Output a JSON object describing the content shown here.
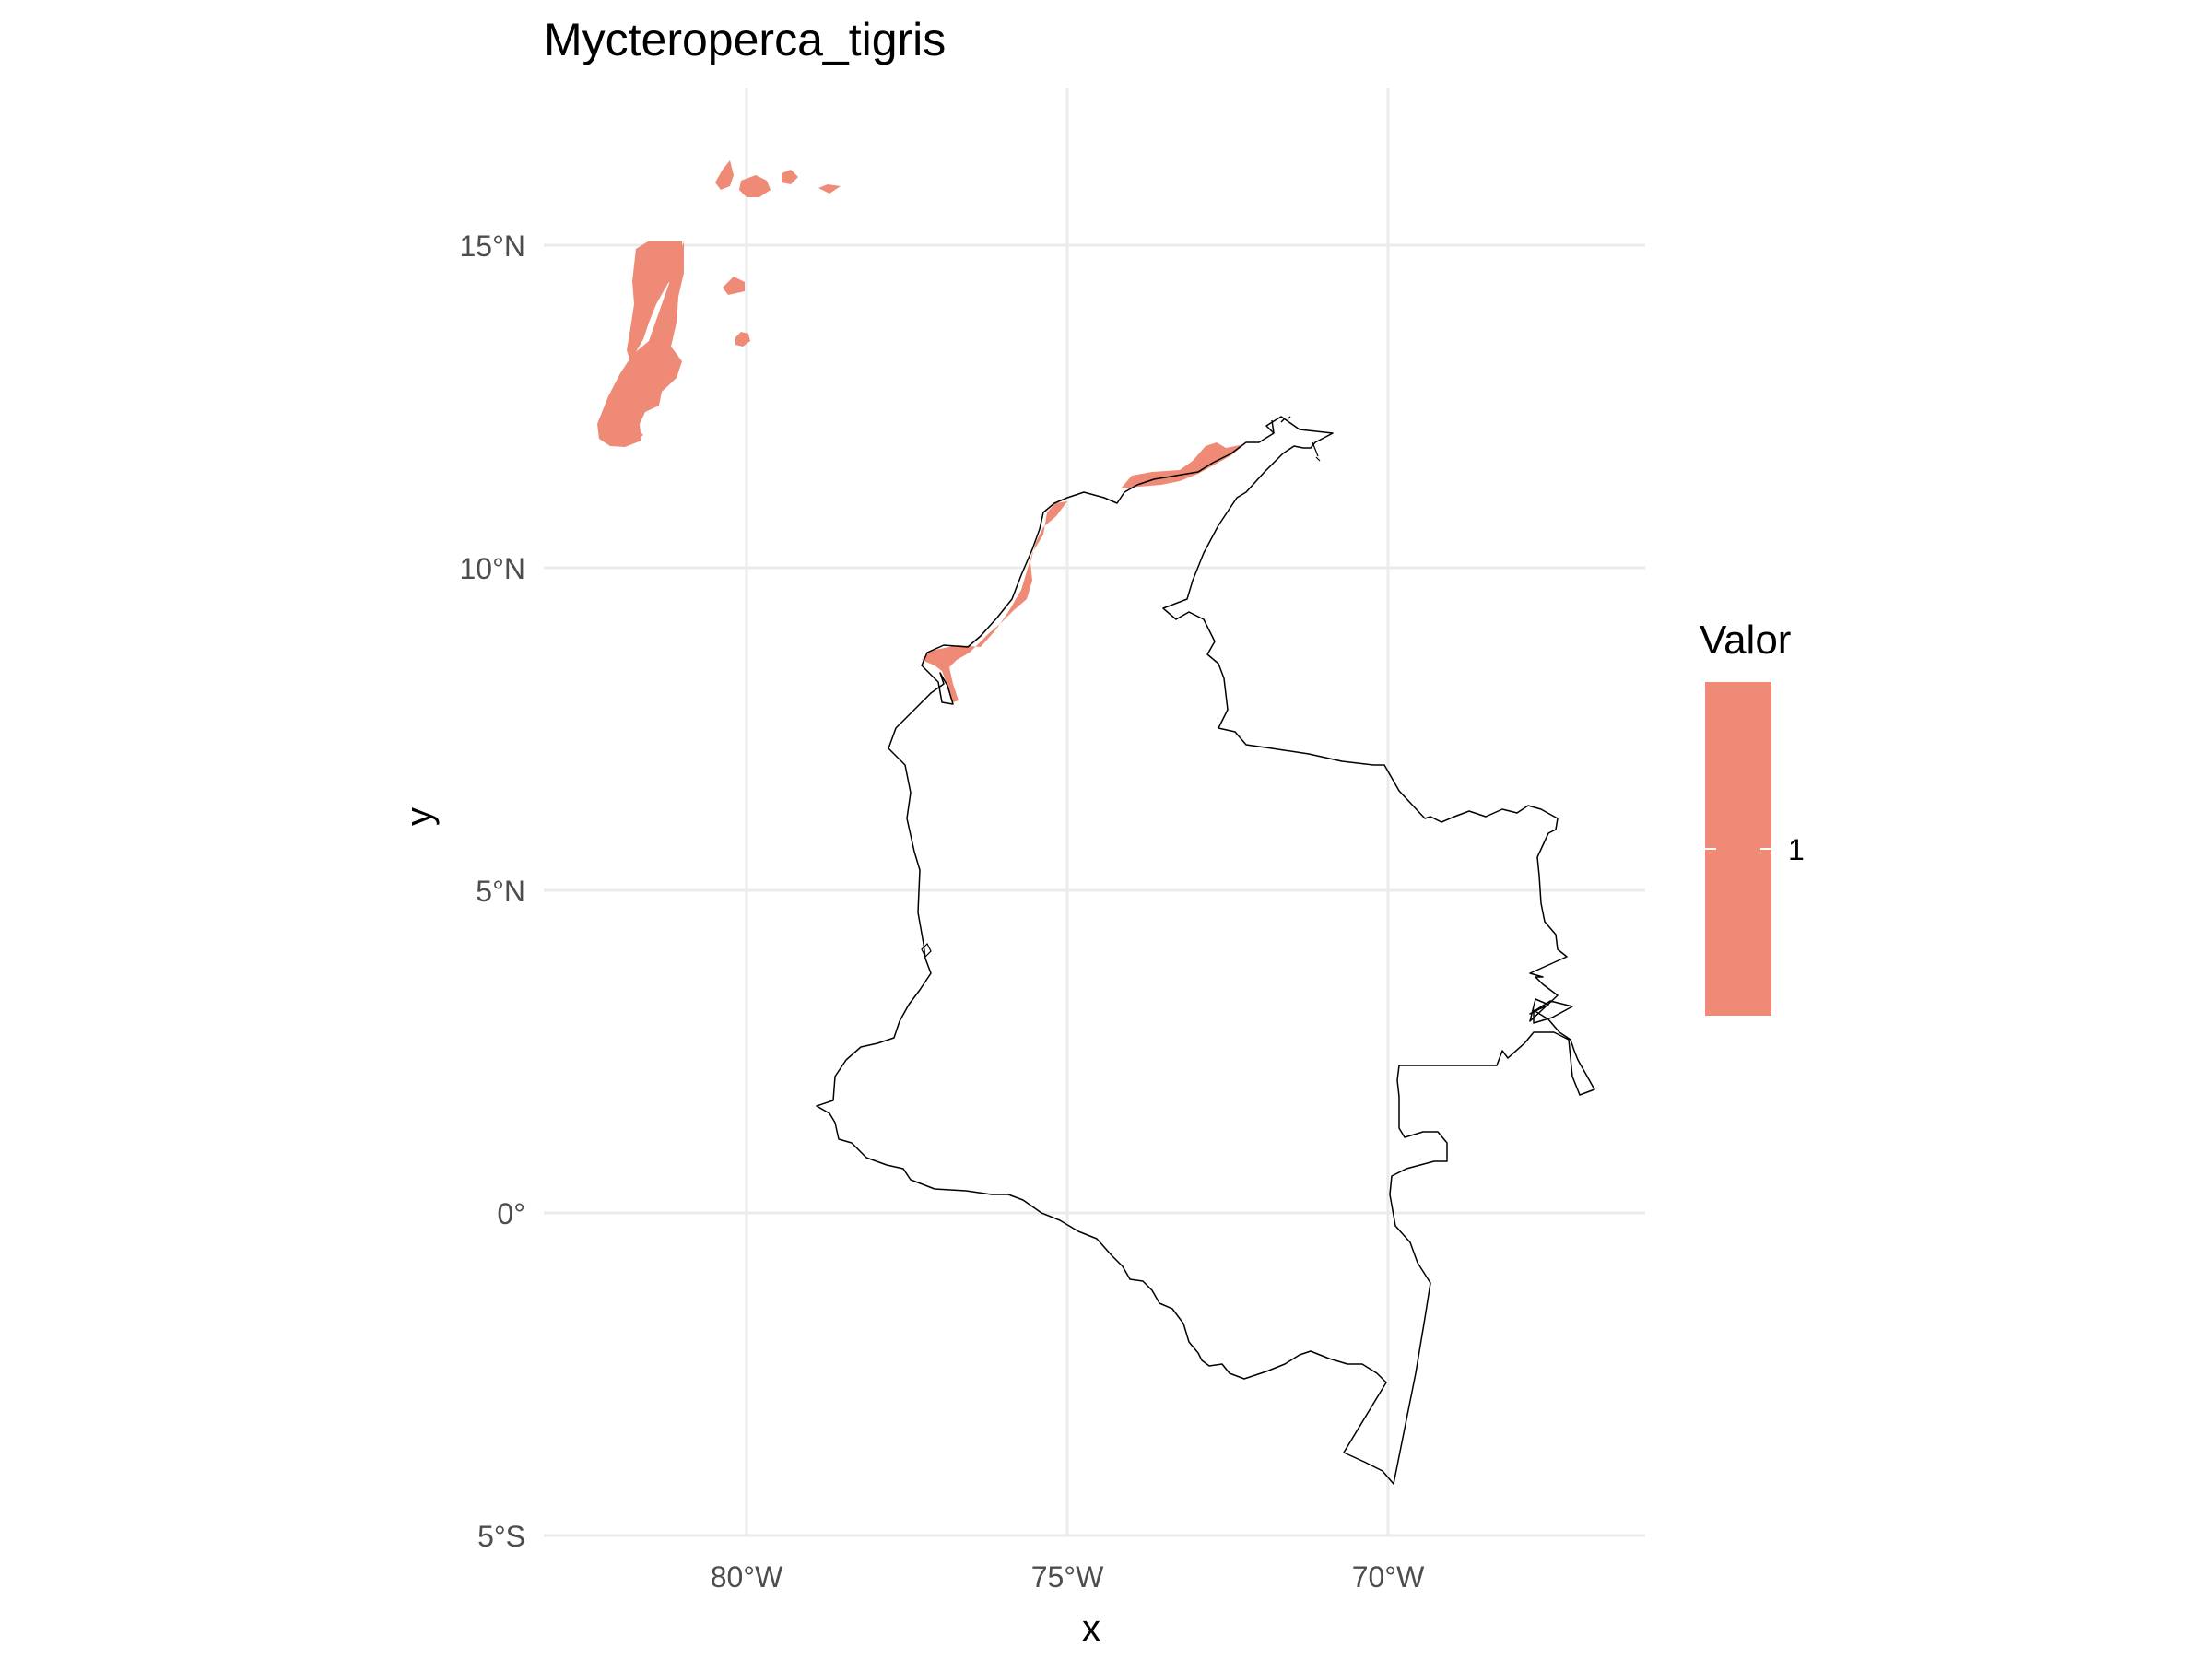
{
  "title": "Mycteroperca_tigris",
  "map": {
    "type": "choropleth-map",
    "region": "Colombia",
    "x_axis": {
      "label": "x",
      "ticks": [
        {
          "value": -80,
          "label": "80°W"
        },
        {
          "value": -75,
          "label": "75°W"
        },
        {
          "value": -70,
          "label": "70°W"
        }
      ],
      "range": [
        -83.2,
        -66.1
      ]
    },
    "y_axis": {
      "label": "y",
      "ticks": [
        {
          "value": 15,
          "label": "15°N"
        },
        {
          "value": 10,
          "label": "10°N"
        },
        {
          "value": 5,
          "label": "5°N"
        },
        {
          "value": 0,
          "label": "0°"
        },
        {
          "value": -5,
          "label": "5°S"
        }
      ],
      "range": [
        -5.0,
        17.0
      ]
    },
    "grid": true,
    "fill_color": "#ee8a75",
    "outline_color": "#000000"
  },
  "legend": {
    "title": "Valor",
    "placement": "right",
    "entries": [
      {
        "label": "1",
        "value": 1,
        "color": "#ee8a75"
      }
    ]
  }
}
